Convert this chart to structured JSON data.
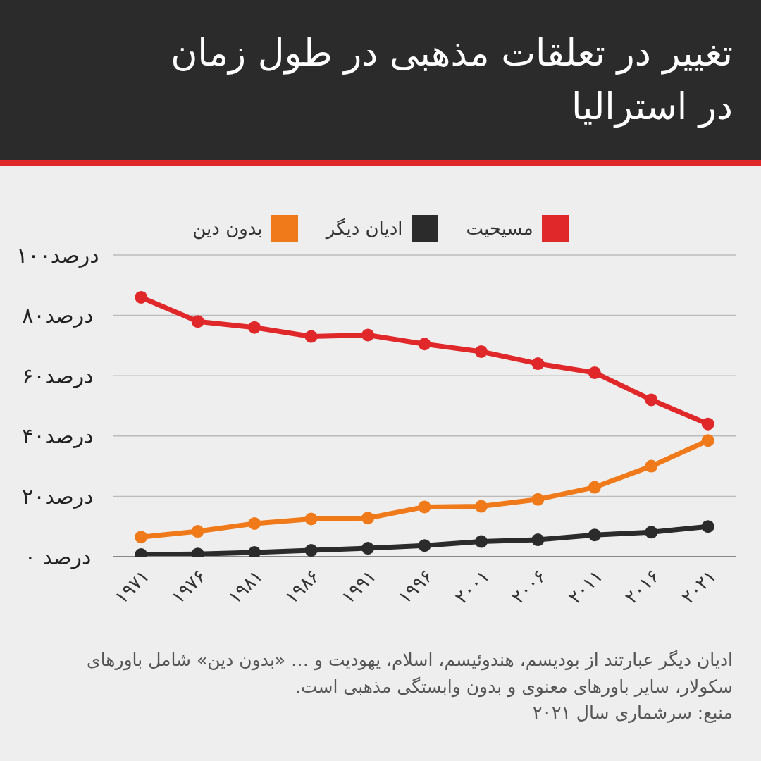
{
  "chart_data": {
    "type": "line",
    "title": "تغییر در تعلقات مذهبی در طول زمان در استرالیا",
    "categories": [
      "۱۹۷۱",
      "۱۹۷۶",
      "۱۹۸۱",
      "۱۹۸۶",
      "۱۹۹۱",
      "۱۹۹۶",
      "۲۰۰۱",
      "۲۰۰۶",
      "۲۰۱۱",
      "۲۰۱۶",
      "۲۰۲۱"
    ],
    "series": [
      {
        "name": "مسیحیت",
        "color": "#e0282a",
        "values": [
          86,
          78,
          76,
          73,
          73.5,
          70.5,
          68,
          64,
          61,
          52,
          44
        ]
      },
      {
        "name": "ادیان دیگر",
        "color": "#2b2b2b",
        "values": [
          0.7,
          0.9,
          1.4,
          2.1,
          2.8,
          3.7,
          5,
          5.6,
          7.2,
          8.1,
          10
        ]
      },
      {
        "name": "بدون دین",
        "color": "#f07a1a",
        "values": [
          6.5,
          8.4,
          11,
          12.5,
          12.8,
          16.5,
          16.7,
          19,
          23,
          30,
          38.5
        ]
      }
    ],
    "ylim": [
      0,
      100
    ],
    "yticks": [
      {
        "value": 0,
        "label": "۰ درصد"
      },
      {
        "value": 20,
        "label": "۲۰درصد"
      },
      {
        "value": 40,
        "label": "۴۰درصد"
      },
      {
        "value": 60,
        "label": "۶۰درصد"
      },
      {
        "value": 80,
        "label": "۸۰درصد"
      },
      {
        "value": 100,
        "label": "۱۰۰درصد"
      }
    ],
    "grid": "y",
    "legend": "top",
    "marker": "circle",
    "line_style": "solid",
    "annotations": [
      "ادیان دیگر عبارتند از بودیسم، هندوئیسم، اسلام، یهودیت و … «بدون دین» شامل باورهای سکولار، سایر باورهای معنوی و بدون وابستگی مذهبی است.",
      "منبع: سرشماری سال ۲۰۲۱"
    ]
  }
}
